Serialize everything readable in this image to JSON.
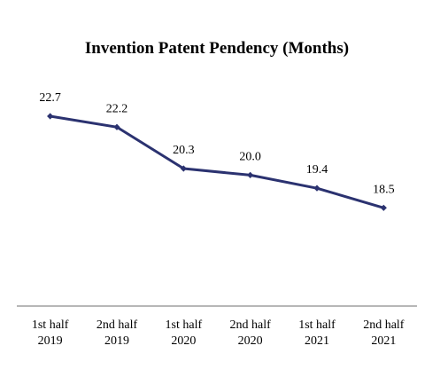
{
  "chart_data": {
    "type": "line",
    "title": "Invention Patent Pendency (Months)",
    "categories": [
      [
        "1st half",
        "2019"
      ],
      [
        "2nd half",
        "2019"
      ],
      [
        "1st half",
        "2020"
      ],
      [
        "2nd half",
        "2020"
      ],
      [
        "1st half",
        "2021"
      ],
      [
        "2nd half",
        "2021"
      ]
    ],
    "series": [
      {
        "values": [
          22.7,
          22.2,
          20.3,
          20.0,
          19.4,
          18.5
        ],
        "data_labels": [
          "22.7",
          "22.2",
          "20.3",
          "20.0",
          "19.4",
          "18.5"
        ],
        "color": "#2b3270"
      }
    ],
    "ylim": [
      14.0,
      24.0
    ],
    "grid": false,
    "legend": "none",
    "xlabel": "",
    "ylabel": ""
  }
}
